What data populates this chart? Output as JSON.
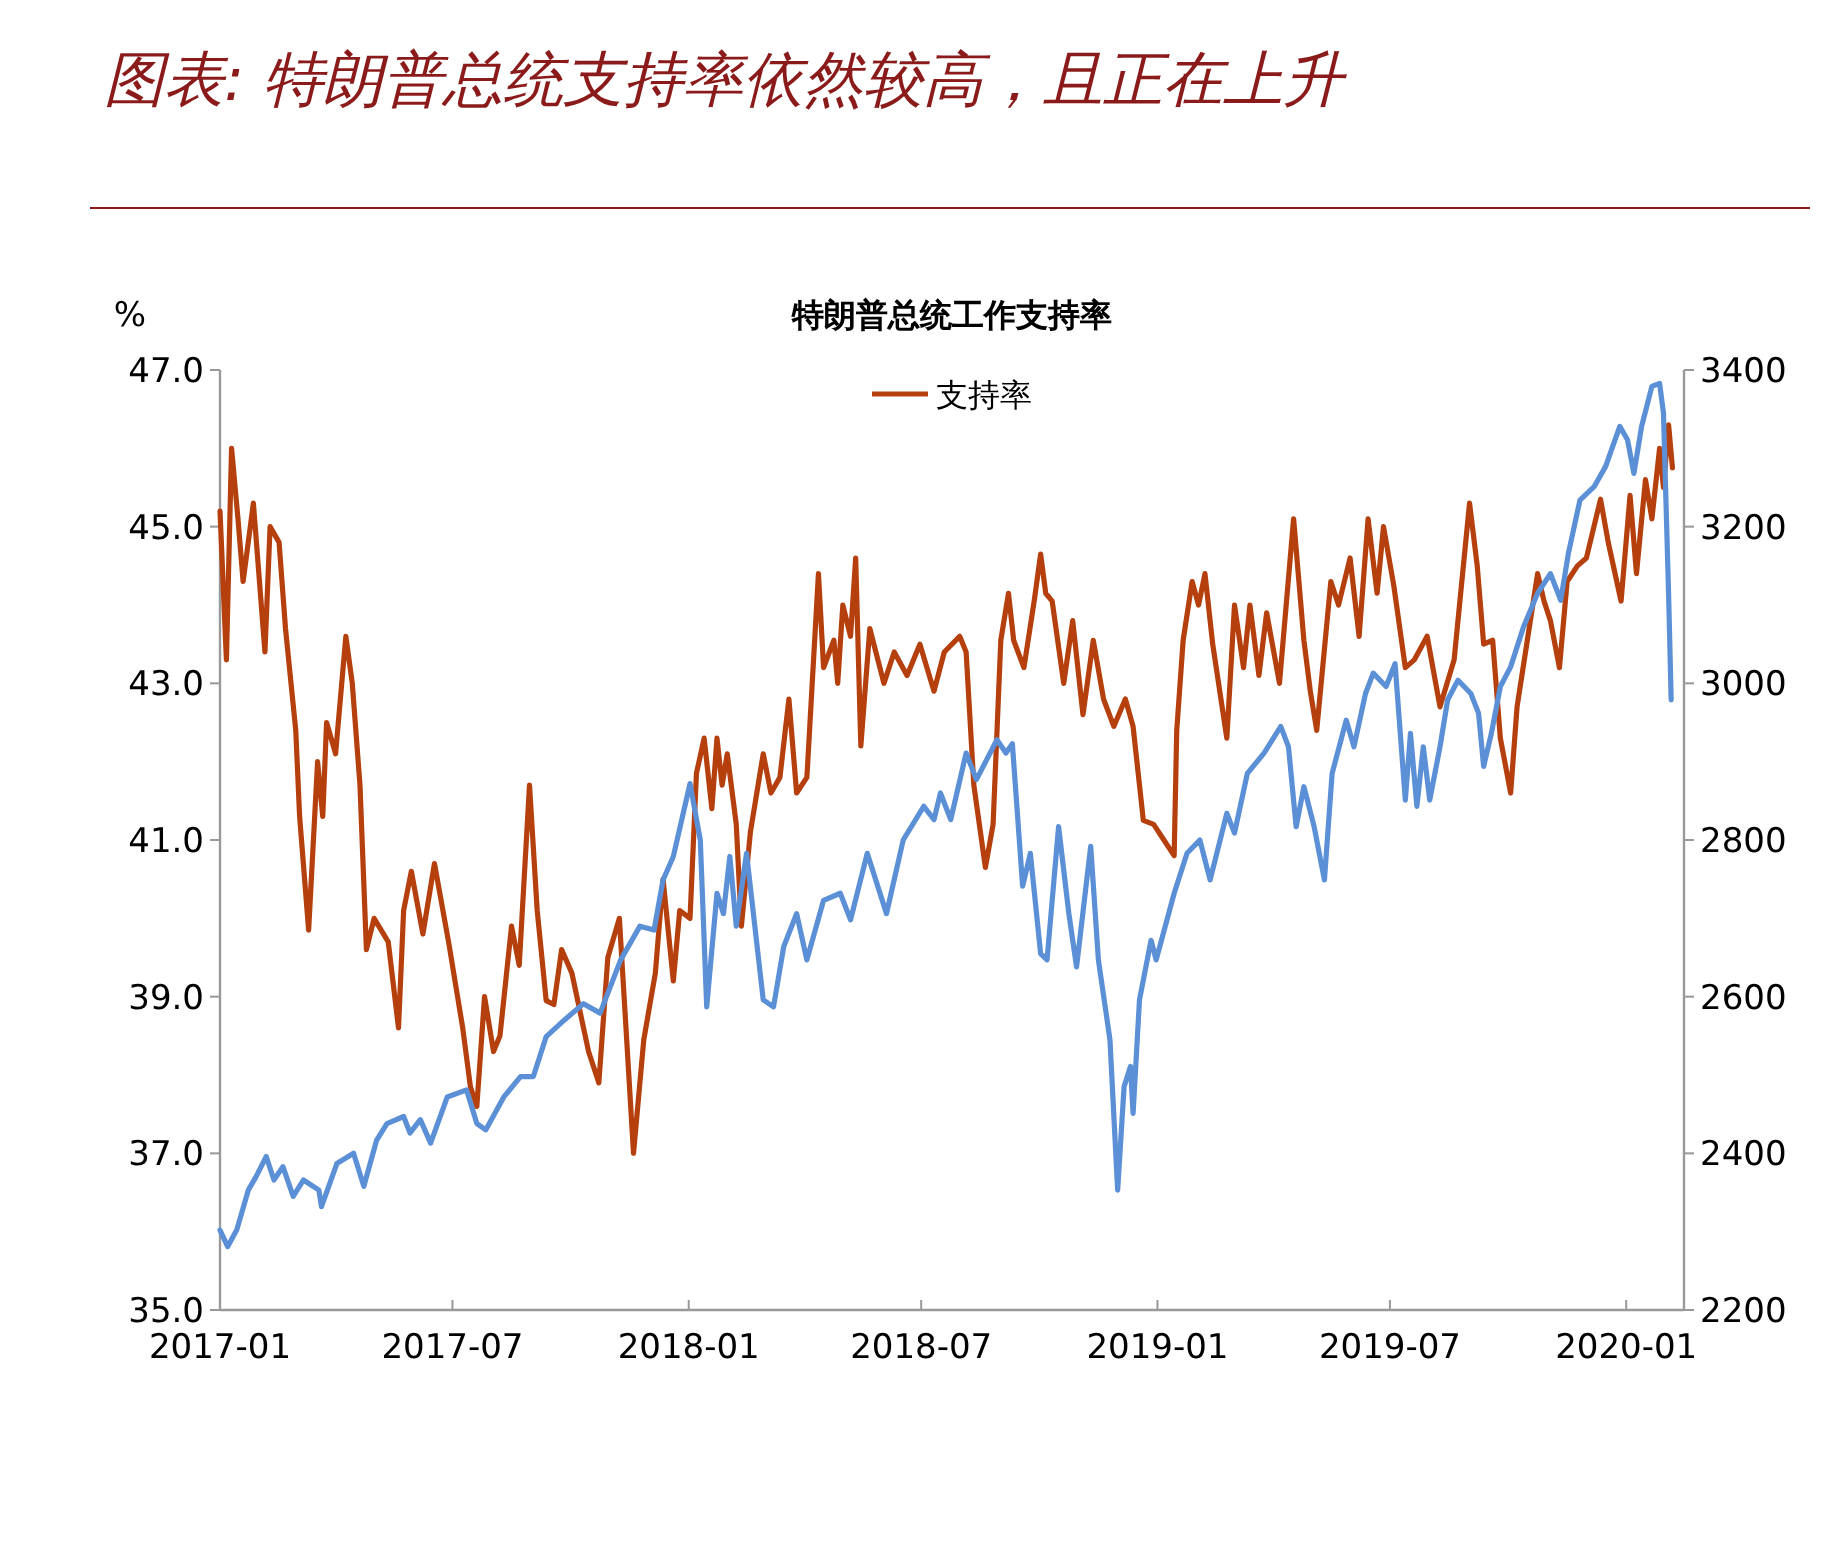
{
  "chart_data": {
    "type": "line",
    "title": "图表: 特朗普总统支持率依然较高，且正在上升",
    "subtitle": "特朗普总统工作支持率",
    "ylabel": "%",
    "legend": "top",
    "xlim": [
      "2017-01-01",
      "2020-02-15"
    ],
    "xticks": [
      "2017-01",
      "2017-07",
      "2018-01",
      "2018-07",
      "2019-01",
      "2019-07",
      "2020-01"
    ],
    "ylim": [
      35,
      47
    ],
    "yticks": [
      {
        "value": 35,
        "label": "35.0"
      },
      {
        "value": 37,
        "label": "37.0"
      },
      {
        "value": 39,
        "label": "39.0"
      },
      {
        "value": 41,
        "label": "41.0"
      },
      {
        "value": 43,
        "label": "43.0"
      },
      {
        "value": 45,
        "label": "45.0"
      },
      {
        "value": 47,
        "label": "47.0"
      }
    ],
    "y2lim": [
      2200,
      3400
    ],
    "y2ticks": [
      2200,
      2400,
      2600,
      2800,
      3000,
      3200,
      3400
    ],
    "series": [
      {
        "name": "支持率",
        "color": "#b5400e",
        "x": [
          "2017-01-01",
          "2017-01-06",
          "2017-01-10",
          "2017-01-15",
          "2017-01-19",
          "2017-01-27",
          "2017-02-05",
          "2017-02-09",
          "2017-02-16",
          "2017-02-21",
          "2017-03-01",
          "2017-03-04",
          "2017-03-11",
          "2017-03-18",
          "2017-03-22",
          "2017-03-25",
          "2017-04-01",
          "2017-04-09",
          "2017-04-14",
          "2017-04-20",
          "2017-04-25",
          "2017-05-01",
          "2017-05-12",
          "2017-05-20",
          "2017-05-24",
          "2017-05-30",
          "2017-06-08",
          "2017-06-17",
          "2017-06-28",
          "2017-07-09",
          "2017-07-15",
          "2017-07-20",
          "2017-07-26",
          "2017-08-02",
          "2017-08-07",
          "2017-08-16",
          "2017-08-22",
          "2017-08-30",
          "2017-09-05",
          "2017-09-12",
          "2017-09-18",
          "2017-09-24",
          "2017-10-02",
          "2017-10-15",
          "2017-10-23",
          "2017-10-30",
          "2017-11-08",
          "2017-11-19",
          "2017-11-27",
          "2017-12-06",
          "2017-12-12",
          "2017-12-20",
          "2017-12-25",
          "2018-01-02",
          "2018-01-07",
          "2018-01-13",
          "2018-01-19",
          "2018-01-23",
          "2018-01-27",
          "2018-01-31",
          "2018-02-07",
          "2018-02-11",
          "2018-02-18",
          "2018-02-28",
          "2018-03-06",
          "2018-03-13",
          "2018-03-20",
          "2018-03-26",
          "2018-04-03",
          "2018-04-12",
          "2018-04-16",
          "2018-04-24",
          "2018-04-27",
          "2018-05-01",
          "2018-05-07",
          "2018-05-11",
          "2018-05-15",
          "2018-05-22",
          "2018-06-02",
          "2018-06-10",
          "2018-06-20",
          "2018-06-30",
          "2018-07-11",
          "2018-07-19",
          "2018-07-31",
          "2018-08-05",
          "2018-08-11",
          "2018-08-20",
          "2018-08-26",
          "2018-09-01",
          "2018-09-07",
          "2018-09-11",
          "2018-09-19",
          "2018-09-27",
          "2018-10-02",
          "2018-10-06",
          "2018-10-11",
          "2018-10-20",
          "2018-10-27",
          "2018-11-04",
          "2018-11-12",
          "2018-11-20",
          "2018-11-28",
          "2018-12-07",
          "2018-12-13",
          "2018-12-21",
          "2018-12-29",
          "2019-01-06",
          "2019-01-14",
          "2019-01-16",
          "2019-01-21",
          "2019-01-28",
          "2019-02-02",
          "2019-02-07",
          "2019-02-13",
          "2019-02-24",
          "2019-03-02",
          "2019-03-09",
          "2019-03-14",
          "2019-03-21",
          "2019-03-27",
          "2019-04-06",
          "2019-04-17",
          "2019-04-25",
          "2019-04-30",
          "2019-05-05",
          "2019-05-16",
          "2019-05-22",
          "2019-05-31",
          "2019-06-07",
          "2019-06-14",
          "2019-06-21",
          "2019-06-26",
          "2019-07-04",
          "2019-07-13",
          "2019-07-20",
          "2019-07-30",
          "2019-08-09",
          "2019-08-20",
          "2019-09-01",
          "2019-09-07",
          "2019-09-12",
          "2019-09-19",
          "2019-09-25",
          "2019-10-03",
          "2019-10-08",
          "2019-10-16",
          "2019-10-24",
          "2019-10-29",
          "2019-11-03",
          "2019-11-10",
          "2019-11-16",
          "2019-11-24",
          "2019-12-01",
          "2019-12-12",
          "2019-12-18",
          "2019-12-28",
          "2020-01-04",
          "2020-01-09",
          "2020-01-16",
          "2020-01-21",
          "2020-01-27",
          "2020-01-30",
          "2020-02-03",
          "2020-02-06"
        ],
        "values": [
          45.2,
          43.3,
          46.0,
          45.1,
          44.3,
          45.3,
          43.4,
          45.0,
          44.8,
          43.7,
          42.4,
          41.3,
          39.85,
          42.0,
          41.3,
          42.5,
          42.1,
          43.6,
          43.0,
          41.7,
          39.6,
          40.0,
          39.7,
          38.6,
          40.1,
          40.6,
          39.8,
          40.7,
          39.7,
          38.6,
          37.85,
          37.6,
          39.0,
          38.3,
          38.5,
          39.9,
          39.4,
          41.7,
          40.1,
          38.95,
          38.9,
          39.6,
          39.3,
          38.3,
          37.9,
          39.5,
          40.0,
          37.0,
          38.45,
          39.3,
          40.5,
          39.2,
          40.1,
          40.0,
          41.85,
          42.3,
          41.4,
          42.3,
          41.7,
          42.1,
          41.2,
          39.9,
          41.1,
          42.1,
          41.6,
          41.8,
          42.8,
          41.6,
          41.8,
          44.4,
          43.2,
          43.55,
          43.0,
          44.0,
          43.6,
          44.6,
          42.2,
          43.7,
          43.0,
          43.4,
          43.1,
          43.5,
          42.9,
          43.4,
          43.6,
          43.4,
          41.7,
          40.65,
          41.2,
          43.55,
          44.15,
          43.55,
          43.2,
          44.05,
          44.65,
          44.15,
          44.05,
          43.0,
          43.8,
          42.6,
          43.55,
          42.8,
          42.45,
          42.8,
          42.45,
          41.25,
          41.2,
          41.0,
          40.8,
          42.4,
          43.55,
          44.3,
          44.0,
          44.4,
          43.5,
          42.3,
          44.0,
          43.2,
          44.0,
          43.1,
          43.9,
          43.0,
          45.1,
          43.55,
          42.9,
          42.4,
          44.3,
          44.0,
          44.6,
          43.6,
          45.1,
          44.15,
          45.0,
          44.25,
          43.2,
          43.3,
          43.6,
          42.7,
          43.3,
          45.3,
          44.5,
          43.5,
          43.55,
          42.3,
          41.6,
          42.7,
          43.55,
          44.4,
          44.05,
          43.8,
          43.2,
          44.3,
          44.5,
          44.6,
          45.35,
          44.8,
          44.05,
          45.4,
          44.4,
          45.6,
          45.1,
          46.0,
          45.5,
          46.3,
          45.75
        ]
      },
      {
        "color": "#5b8fd6",
        "axis": "y2",
        "x": [
          "2017-01-01",
          "2017-01-07",
          "2017-01-14",
          "2017-01-23",
          "2017-01-29",
          "2017-02-06",
          "2017-02-12",
          "2017-02-19",
          "2017-02-27",
          "2017-03-07",
          "2017-03-19",
          "2017-03-21",
          "2017-04-02",
          "2017-04-15",
          "2017-04-23",
          "2017-05-03",
          "2017-05-11",
          "2017-05-24",
          "2017-05-29",
          "2017-06-06",
          "2017-06-14",
          "2017-06-27",
          "2017-07-12",
          "2017-07-20",
          "2017-07-27",
          "2017-08-10",
          "2017-08-23",
          "2017-09-02",
          "2017-09-12",
          "2017-09-26",
          "2017-10-11",
          "2017-10-24",
          "2017-11-09",
          "2017-11-24",
          "2017-12-05",
          "2017-12-12",
          "2017-12-20",
          "2018-01-02",
          "2018-01-10",
          "2018-01-15",
          "2018-01-23",
          "2018-01-28",
          "2018-02-02",
          "2018-02-07",
          "2018-02-15",
          "2018-02-28",
          "2018-03-08",
          "2018-03-16",
          "2018-03-26",
          "2018-04-03",
          "2018-04-16",
          "2018-04-29",
          "2018-05-07",
          "2018-05-20",
          "2018-06-04",
          "2018-06-17",
          "2018-07-03",
          "2018-07-11",
          "2018-07-16",
          "2018-07-24",
          "2018-08-05",
          "2018-08-13",
          "2018-08-29",
          "2018-09-05",
          "2018-09-10",
          "2018-09-18",
          "2018-09-24",
          "2018-10-02",
          "2018-10-07",
          "2018-10-16",
          "2018-10-24",
          "2018-10-30",
          "2018-11-10",
          "2018-11-16",
          "2018-11-25",
          "2018-12-01",
          "2018-12-06",
          "2018-12-11",
          "2018-12-13",
          "2018-12-18",
          "2018-12-27",
          "2018-12-31",
          "2019-01-14",
          "2019-01-24",
          "2019-02-03",
          "2019-02-11",
          "2019-02-24",
          "2019-03-02",
          "2019-03-12",
          "2019-03-25",
          "2019-04-07",
          "2019-04-13",
          "2019-04-19",
          "2019-04-25",
          "2019-05-03",
          "2019-05-11",
          "2019-05-17",
          "2019-05-28",
          "2019-06-03",
          "2019-06-12",
          "2019-06-18",
          "2019-06-28",
          "2019-07-05",
          "2019-07-13",
          "2019-07-17",
          "2019-07-22",
          "2019-07-27",
          "2019-08-01",
          "2019-08-09",
          "2019-08-15",
          "2019-08-23",
          "2019-09-02",
          "2019-09-08",
          "2019-09-12",
          "2019-09-18",
          "2019-09-25",
          "2019-10-03",
          "2019-10-13",
          "2019-10-24",
          "2019-11-03",
          "2019-11-11",
          "2019-11-17",
          "2019-11-26",
          "2019-12-07",
          "2019-12-16",
          "2019-12-27",
          "2020-01-02",
          "2020-01-07",
          "2020-01-13",
          "2020-01-21",
          "2020-01-27",
          "2020-01-30",
          "2020-02-03",
          "2020-02-05"
        ],
        "values": [
          2302,
          2281,
          2302,
          2353,
          2370,
          2396,
          2366,
          2383,
          2345,
          2366,
          2353,
          2332,
          2387,
          2400,
          2358,
          2417,
          2438,
          2447,
          2426,
          2443,
          2413,
          2472,
          2481,
          2438,
          2430,
          2472,
          2498,
          2498,
          2549,
          2570,
          2591,
          2579,
          2647,
          2690,
          2685,
          2749,
          2779,
          2872,
          2800,
          2587,
          2732,
          2706,
          2779,
          2690,
          2783,
          2596,
          2587,
          2664,
          2706,
          2647,
          2723,
          2732,
          2698,
          2783,
          2706,
          2800,
          2843,
          2826,
          2860,
          2826,
          2911,
          2877,
          2928,
          2911,
          2923,
          2741,
          2783,
          2655,
          2647,
          2817,
          2706,
          2638,
          2792,
          2647,
          2545,
          2353,
          2485,
          2511,
          2451,
          2596,
          2672,
          2647,
          2732,
          2783,
          2800,
          2749,
          2834,
          2809,
          2885,
          2911,
          2945,
          2919,
          2817,
          2868,
          2817,
          2749,
          2885,
          2953,
          2919,
          2987,
          3013,
          2996,
          3025,
          2851,
          2936,
          2843,
          2919,
          2851,
          2919,
          2979,
          3004,
          2987,
          2962,
          2894,
          2936,
          2996,
          3021,
          3072,
          3115,
          3140,
          3106,
          3166,
          3234,
          3251,
          3277,
          3328,
          3311,
          3268,
          3328,
          3379,
          3383,
          3345,
          3115,
          2979
        ]
      }
    ]
  }
}
